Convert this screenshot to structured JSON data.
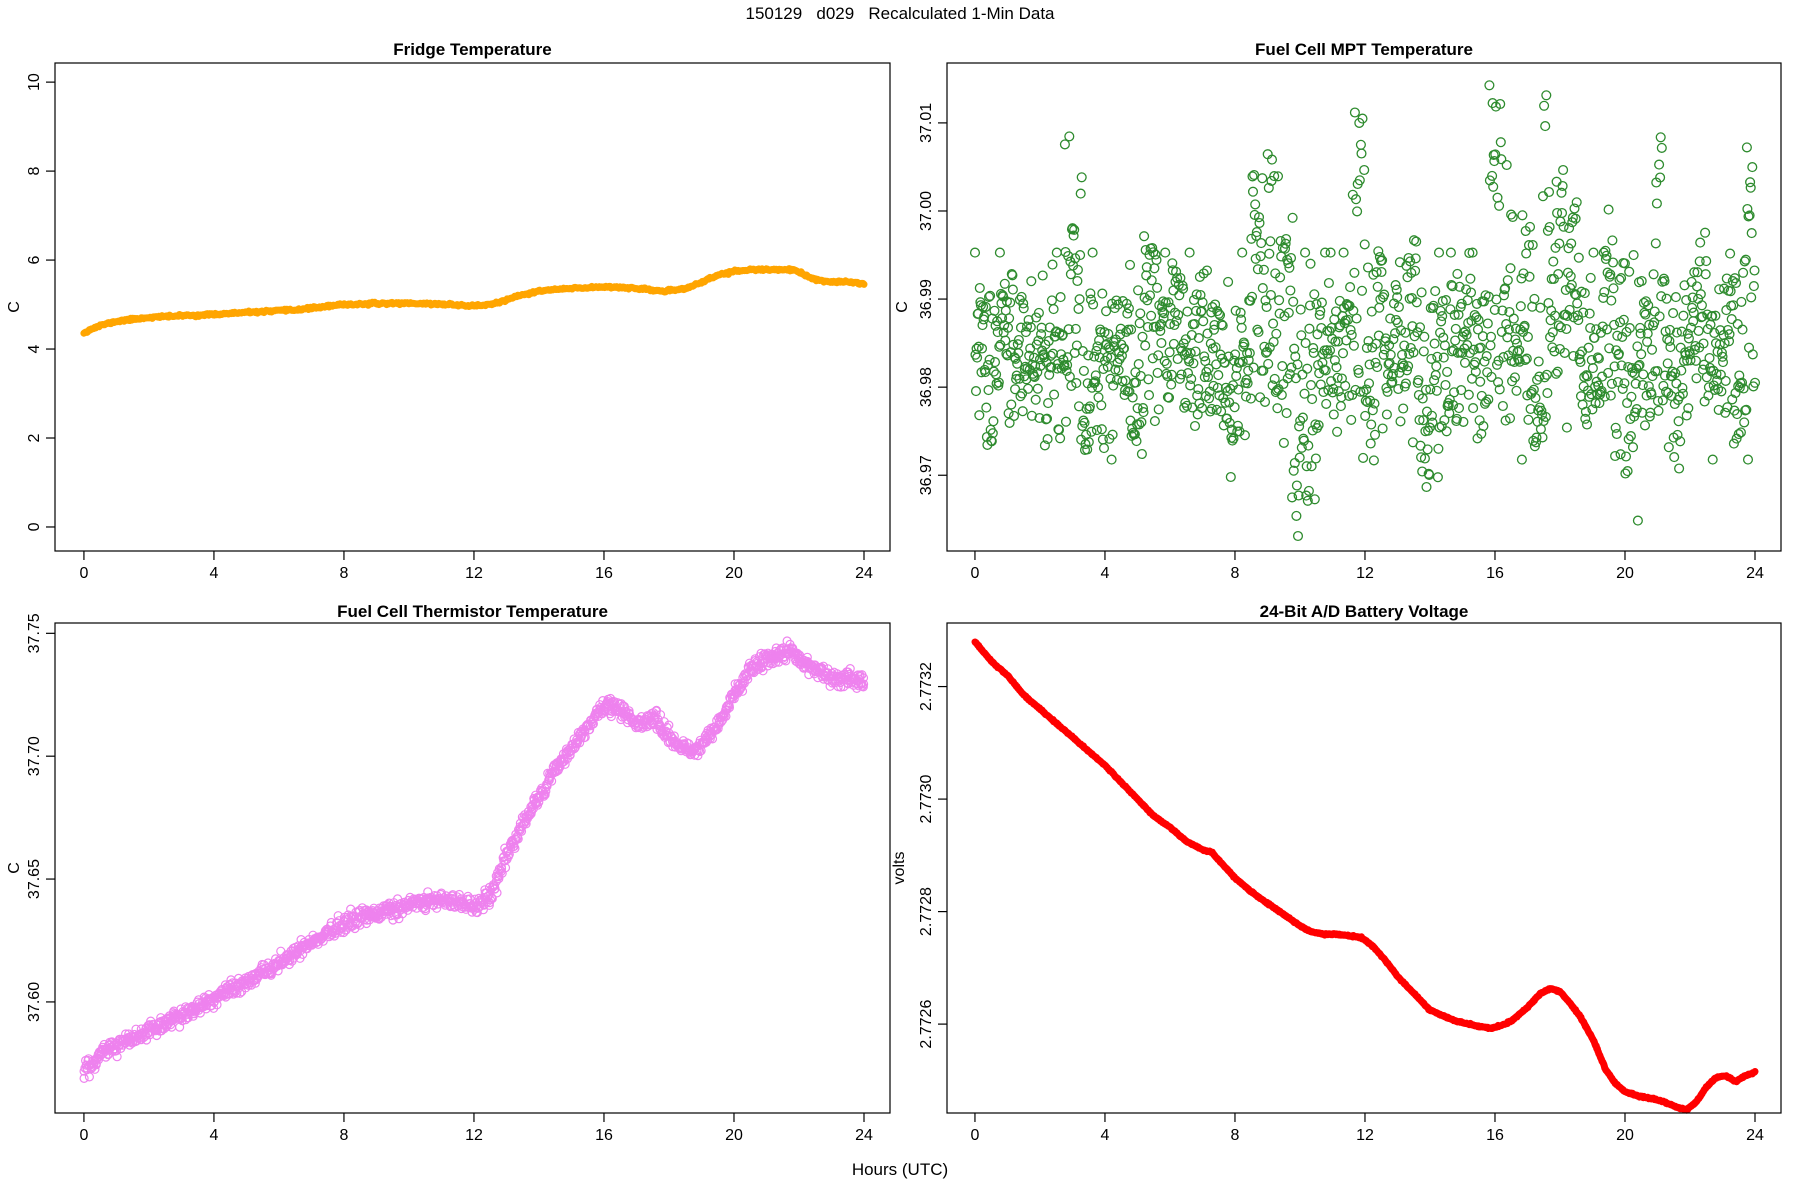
{
  "figure": {
    "title": "150129   d029   Recalculated 1-Min Data",
    "xlabel": "Hours (UTC)",
    "background": "#ffffff",
    "axis_color": "#000000",
    "text_color": "#000000"
  },
  "chart_data": [
    {
      "type": "line",
      "title": "Fridge Temperature",
      "ylabel": "C",
      "xlabel": "",
      "color": "#FFA500",
      "line_width": 7,
      "xlim": [
        -0.89,
        24.8
      ],
      "ylim": [
        -0.54,
        10.43
      ],
      "xticks": [
        0,
        4,
        8,
        12,
        16,
        20,
        24
      ],
      "xtick_labels": [
        "0",
        "4",
        "8",
        "12",
        "16",
        "20",
        "24"
      ],
      "yticks": [
        0,
        2,
        4,
        6,
        8,
        10
      ],
      "ytick_labels": [
        "0",
        "2",
        "4",
        "6",
        "8",
        "10"
      ],
      "x": [
        0,
        0.3,
        0.6,
        1,
        1.5,
        2,
        2.5,
        3,
        3.5,
        4,
        4.5,
        5,
        5.5,
        6,
        6.5,
        7,
        7.5,
        8,
        8.5,
        9,
        9.5,
        10,
        10.5,
        11,
        11.5,
        12,
        12.5,
        13,
        13.5,
        14,
        14.5,
        15,
        15.5,
        16,
        16.5,
        17,
        17.5,
        18,
        18.5,
        19,
        19.5,
        20,
        20.5,
        21,
        21.5,
        21.8,
        22,
        22.5,
        23,
        23.5,
        24
      ],
      "y": [
        4.37,
        4.47,
        4.55,
        4.62,
        4.67,
        4.71,
        4.73,
        4.75,
        4.76,
        4.78,
        4.8,
        4.82,
        4.84,
        4.86,
        4.88,
        4.92,
        4.96,
        5.0,
        5.01,
        5.02,
        5.03,
        5.03,
        5.02,
        5.01,
        4.99,
        4.97,
        5.0,
        5.1,
        5.22,
        5.3,
        5.34,
        5.36,
        5.38,
        5.4,
        5.39,
        5.36,
        5.32,
        5.3,
        5.36,
        5.5,
        5.66,
        5.75,
        5.78,
        5.78,
        5.79,
        5.78,
        5.72,
        5.56,
        5.5,
        5.51,
        5.47
      ],
      "noise_sd": 0.012,
      "n_render": 720,
      "seed": 11
    },
    {
      "type": "scatter_cloud",
      "title": "Fuel Cell MPT Temperature",
      "ylabel": "C",
      "xlabel": "",
      "color": "#2E8B2E",
      "marker": "open-circle",
      "marker_r": 4.4,
      "xlim": [
        -0.86,
        24.8
      ],
      "ylim": [
        36.9614,
        37.0168
      ],
      "xticks": [
        0,
        4,
        8,
        12,
        16,
        20,
        24
      ],
      "xtick_labels": [
        "0",
        "4",
        "8",
        "12",
        "16",
        "20",
        "24"
      ],
      "yticks": [
        36.97,
        36.98,
        36.99,
        37.0,
        37.01
      ],
      "ytick_labels": [
        "36.97",
        "36.98",
        "36.99",
        "37.00",
        "37.01"
      ],
      "cloud": {
        "n": 1440,
        "mean": 36.984,
        "sd": 0.0047,
        "base_min": 36.9655,
        "base_max": 37.0005,
        "clip_min": 36.963,
        "clip_max": 37.0145,
        "spike_halfwidth": 0.2,
        "spikes": [
          {
            "h": 0.3,
            "a": 0.006
          },
          {
            "h": 1.0,
            "a": 0.008
          },
          {
            "h": 2.9,
            "a": 0.027
          },
          {
            "h": 3.15,
            "a": 0.018
          },
          {
            "h": 5.4,
            "a": 0.012
          },
          {
            "h": 6.2,
            "a": 0.01
          },
          {
            "h": 8.7,
            "a": 0.021
          },
          {
            "h": 9.2,
            "a": 0.024
          },
          {
            "h": 9.6,
            "a": 0.014
          },
          {
            "h": 11.8,
            "a": 0.029
          },
          {
            "h": 12.4,
            "a": 0.012
          },
          {
            "h": 13.4,
            "a": 0.014
          },
          {
            "h": 16.0,
            "a": 0.03
          },
          {
            "h": 16.35,
            "a": 0.024
          },
          {
            "h": 17.0,
            "a": 0.016
          },
          {
            "h": 17.5,
            "a": 0.03
          },
          {
            "h": 18.0,
            "a": 0.02
          },
          {
            "h": 18.4,
            "a": 0.016
          },
          {
            "h": 19.5,
            "a": 0.014
          },
          {
            "h": 21.0,
            "a": 0.025
          },
          {
            "h": 22.3,
            "a": 0.014
          },
          {
            "h": 23.3,
            "a": 0.012
          },
          {
            "h": 23.8,
            "a": 0.023
          }
        ],
        "dips": [
          {
            "h": 0.4,
            "a": 0.01
          },
          {
            "h": 3.4,
            "a": 0.012
          },
          {
            "h": 5.0,
            "a": 0.009
          },
          {
            "h": 7.9,
            "a": 0.013
          },
          {
            "h": 9.9,
            "a": 0.021
          },
          {
            "h": 10.3,
            "a": 0.017
          },
          {
            "h": 12.1,
            "a": 0.012
          },
          {
            "h": 13.9,
            "a": 0.015
          },
          {
            "h": 14.4,
            "a": 0.012
          },
          {
            "h": 17.3,
            "a": 0.01
          },
          {
            "h": 20.2,
            "a": 0.02
          },
          {
            "h": 21.5,
            "a": 0.012
          },
          {
            "h": 23.5,
            "a": 0.01
          }
        ]
      },
      "seed": 7
    },
    {
      "type": "scatter_trend",
      "title": "Fuel Cell Thermistor Temperature",
      "ylabel": "C",
      "xlabel": "",
      "color": "#EE82EE",
      "marker": "open-circle",
      "marker_r": 4.0,
      "xlim": [
        -0.89,
        24.8
      ],
      "ylim": [
        37.5548,
        37.7542
      ],
      "xticks": [
        0,
        4,
        8,
        12,
        16,
        20,
        24
      ],
      "xtick_labels": [
        "0",
        "4",
        "8",
        "12",
        "16",
        "20",
        "24"
      ],
      "yticks": [
        37.6,
        37.65,
        37.7,
        37.75
      ],
      "ytick_labels": [
        "37.60",
        "37.65",
        "37.70",
        "37.75"
      ],
      "x": [
        0,
        0.3,
        0.7,
        1,
        1.5,
        2,
        2.5,
        3,
        3.5,
        4,
        4.5,
        5,
        5.5,
        6,
        6.5,
        7,
        7.5,
        8,
        8.5,
        9,
        9.5,
        10,
        10.5,
        11,
        11.5,
        12,
        12.3,
        12.6,
        13,
        13.5,
        14,
        14.5,
        15,
        15.5,
        15.8,
        16.1,
        16.4,
        16.7,
        17,
        17.3,
        17.6,
        17.9,
        18.2,
        18.5,
        18.8,
        19.1,
        19.5,
        20,
        20.5,
        21,
        21.4,
        21.7,
        22,
        22.3,
        22.7,
        23,
        23.3,
        23.6,
        24
      ],
      "y": [
        37.573,
        37.576,
        37.5805,
        37.5825,
        37.5855,
        37.588,
        37.5915,
        37.595,
        37.598,
        37.601,
        37.605,
        37.608,
        37.612,
        37.616,
        37.62,
        37.6245,
        37.628,
        37.632,
        37.6345,
        37.636,
        37.638,
        37.64,
        37.641,
        37.6415,
        37.64,
        37.639,
        37.64,
        37.646,
        37.66,
        37.672,
        37.683,
        37.695,
        37.703,
        37.712,
        37.718,
        37.721,
        37.72,
        37.716,
        37.713,
        37.714,
        37.7155,
        37.71,
        37.705,
        37.703,
        37.7025,
        37.706,
        37.713,
        37.725,
        37.735,
        37.74,
        37.741,
        37.743,
        37.74,
        37.737,
        37.734,
        37.732,
        37.73,
        37.732,
        37.729
      ],
      "noise_sd": 0.0017,
      "n_render": 1440,
      "seed": 3
    },
    {
      "type": "line",
      "title": "24-Bit A/D Battery Voltage",
      "ylabel": "volts",
      "xlabel": "",
      "color": "#FF0000",
      "line_width": 7,
      "xlim": [
        -0.86,
        24.8
      ],
      "ylim": [
        2.772442,
        2.773313
      ],
      "xticks": [
        0,
        4,
        8,
        12,
        16,
        20,
        24
      ],
      "xtick_labels": [
        "0",
        "4",
        "8",
        "12",
        "16",
        "20",
        "24"
      ],
      "yticks": [
        2.7726,
        2.7728,
        2.773,
        2.7732
      ],
      "ytick_labels": [
        "2.7726",
        "2.7728",
        "2.7730",
        "2.7732"
      ],
      "x": [
        0,
        0.5,
        1,
        1.5,
        2,
        2.5,
        3,
        3.3,
        3.6,
        4,
        4.5,
        5,
        5.5,
        6,
        6.5,
        7,
        7.3,
        7.6,
        8,
        8.5,
        9,
        9.5,
        10,
        10.3,
        10.7,
        11,
        11.4,
        11.8,
        12,
        12.3,
        12.6,
        13,
        13.5,
        14,
        14.4,
        14.8,
        15.2,
        15.6,
        15.9,
        16.2,
        16.5,
        17,
        17.4,
        17.7,
        18,
        18.3,
        18.6,
        19,
        19.4,
        19.7,
        20,
        20.4,
        20.8,
        21.2,
        21.6,
        21.9,
        22.2,
        22.5,
        22.8,
        23.1,
        23.4,
        23.7,
        24
      ],
      "y": [
        2.77328,
        2.773245,
        2.77322,
        2.773185,
        2.77316,
        2.773135,
        2.77311,
        2.773095,
        2.77308,
        2.77306,
        2.77303,
        2.773,
        2.77297,
        2.77295,
        2.772925,
        2.77291,
        2.772905,
        2.772885,
        2.77286,
        2.772835,
        2.772815,
        2.772795,
        2.772775,
        2.772765,
        2.77276,
        2.77276,
        2.772758,
        2.772755,
        2.77275,
        2.772735,
        2.772715,
        2.772685,
        2.772655,
        2.772625,
        2.772615,
        2.772605,
        2.7726,
        2.772595,
        2.772592,
        2.772598,
        2.772605,
        2.77263,
        2.772655,
        2.772663,
        2.772658,
        2.772638,
        2.772615,
        2.772575,
        2.77252,
        2.772495,
        2.77248,
        2.772472,
        2.772468,
        2.772462,
        2.772452,
        2.772448,
        2.772462,
        2.772488,
        2.772505,
        2.772508,
        2.772498,
        2.772508,
        2.772515
      ],
      "noise_sd": 6e-07,
      "n_render": 1440,
      "seed": 21
    }
  ]
}
